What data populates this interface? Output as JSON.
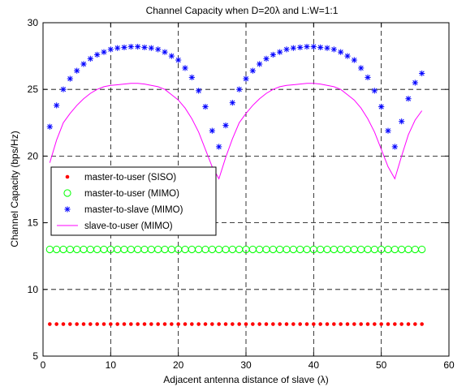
{
  "chart_data": {
    "type": "scatter",
    "title": "Channel Capacity when D=20λ and L:W=1:1",
    "xlabel": "Adjacent antenna distance of slave (λ)",
    "ylabel": "Channel Capacity (bps/Hz)",
    "xlim": [
      0,
      60
    ],
    "ylim": [
      5,
      30
    ],
    "xticks": [
      0,
      10,
      20,
      30,
      40,
      50,
      60
    ],
    "yticks": [
      5,
      10,
      15,
      20,
      25,
      30
    ],
    "grid": true,
    "grid_style": "dashed",
    "legend_position": "middle-left",
    "series": [
      {
        "name": "master-to-user (SISO)",
        "marker": "dot",
        "color": "#ff0000",
        "x": [
          1,
          2,
          3,
          4,
          5,
          6,
          7,
          8,
          9,
          10,
          11,
          12,
          13,
          14,
          15,
          16,
          17,
          18,
          19,
          20,
          21,
          22,
          23,
          24,
          25,
          26,
          27,
          28,
          29,
          30,
          31,
          32,
          33,
          34,
          35,
          36,
          37,
          38,
          39,
          40,
          41,
          42,
          43,
          44,
          45,
          46,
          47,
          48,
          49,
          50,
          51,
          52,
          53,
          54,
          55,
          56
        ],
        "y": [
          7.4,
          7.4,
          7.4,
          7.4,
          7.4,
          7.4,
          7.4,
          7.4,
          7.4,
          7.4,
          7.4,
          7.4,
          7.4,
          7.4,
          7.4,
          7.4,
          7.4,
          7.4,
          7.4,
          7.4,
          7.4,
          7.4,
          7.4,
          7.4,
          7.4,
          7.4,
          7.4,
          7.4,
          7.4,
          7.4,
          7.4,
          7.4,
          7.4,
          7.4,
          7.4,
          7.4,
          7.4,
          7.4,
          7.4,
          7.4,
          7.4,
          7.4,
          7.4,
          7.4,
          7.4,
          7.4,
          7.4,
          7.4,
          7.4,
          7.4,
          7.4,
          7.4,
          7.4,
          7.4,
          7.4,
          7.4
        ]
      },
      {
        "name": "master-to-user (MIMO)",
        "marker": "circle",
        "color": "#00ff00",
        "x": [
          1,
          2,
          3,
          4,
          5,
          6,
          7,
          8,
          9,
          10,
          11,
          12,
          13,
          14,
          15,
          16,
          17,
          18,
          19,
          20,
          21,
          22,
          23,
          24,
          25,
          26,
          27,
          28,
          29,
          30,
          31,
          32,
          33,
          34,
          35,
          36,
          37,
          38,
          39,
          40,
          41,
          42,
          43,
          44,
          45,
          46,
          47,
          48,
          49,
          50,
          51,
          52,
          53,
          54,
          55,
          56
        ],
        "y": [
          13,
          13,
          13,
          13,
          13,
          13,
          13,
          13,
          13,
          13,
          13,
          13,
          13,
          13,
          13,
          13,
          13,
          13,
          13,
          13,
          13,
          13,
          13,
          13,
          13,
          13,
          13,
          13,
          13,
          13,
          13,
          13,
          13,
          13,
          13,
          13,
          13,
          13,
          13,
          13,
          13,
          13,
          13,
          13,
          13,
          13,
          13,
          13,
          13,
          13,
          13,
          13,
          13,
          13,
          13,
          13
        ]
      },
      {
        "name": "master-to-slave (MIMO)",
        "marker": "star",
        "color": "#0000ff",
        "x": [
          1,
          2,
          3,
          4,
          5,
          6,
          7,
          8,
          9,
          10,
          11,
          12,
          13,
          14,
          15,
          16,
          17,
          18,
          19,
          20,
          21,
          22,
          23,
          24,
          25,
          26,
          27,
          28,
          29,
          30,
          31,
          32,
          33,
          34,
          35,
          36,
          37,
          38,
          39,
          40,
          41,
          42,
          43,
          44,
          45,
          46,
          47,
          48,
          49,
          50,
          51,
          52,
          53,
          54,
          55,
          56
        ],
        "y": [
          22.2,
          23.8,
          25.0,
          25.8,
          26.4,
          26.9,
          27.3,
          27.6,
          27.8,
          28.0,
          28.1,
          28.15,
          28.2,
          28.2,
          28.15,
          28.1,
          28.0,
          27.8,
          27.5,
          27.2,
          26.6,
          25.9,
          24.9,
          23.7,
          21.9,
          20.7,
          22.3,
          24.0,
          25.0,
          25.8,
          26.4,
          26.9,
          27.3,
          27.6,
          27.8,
          28.0,
          28.1,
          28.15,
          28.2,
          28.2,
          28.15,
          28.1,
          28.0,
          27.8,
          27.5,
          27.2,
          26.6,
          25.9,
          24.9,
          23.7,
          21.9,
          20.7,
          22.6,
          24.3,
          25.5,
          26.2
        ]
      },
      {
        "name": "slave-to-user (MIMO)",
        "marker": "line",
        "color": "#ff00ff",
        "x": [
          1,
          2,
          3,
          4,
          5,
          6,
          7,
          8,
          9,
          10,
          11,
          12,
          13,
          14,
          15,
          16,
          17,
          18,
          19,
          20,
          21,
          22,
          23,
          24,
          25,
          26,
          27,
          28,
          29,
          30,
          31,
          32,
          33,
          34,
          35,
          36,
          37,
          38,
          39,
          40,
          41,
          42,
          43,
          44,
          45,
          46,
          47,
          48,
          49,
          50,
          51,
          52,
          53,
          54,
          55,
          56
        ],
        "y": [
          19.5,
          21.2,
          22.5,
          23.2,
          23.8,
          24.3,
          24.7,
          25.0,
          25.2,
          25.3,
          25.35,
          25.4,
          25.45,
          25.45,
          25.4,
          25.3,
          25.2,
          25.0,
          24.6,
          24.2,
          23.6,
          22.8,
          21.8,
          20.5,
          19.2,
          18.3,
          19.9,
          21.3,
          22.5,
          23.2,
          23.8,
          24.3,
          24.7,
          25.0,
          25.2,
          25.3,
          25.35,
          25.4,
          25.45,
          25.45,
          25.4,
          25.3,
          25.2,
          25.0,
          24.6,
          24.2,
          23.6,
          22.8,
          21.8,
          20.5,
          19.2,
          18.3,
          20.0,
          21.6,
          22.7,
          23.4
        ]
      }
    ]
  }
}
